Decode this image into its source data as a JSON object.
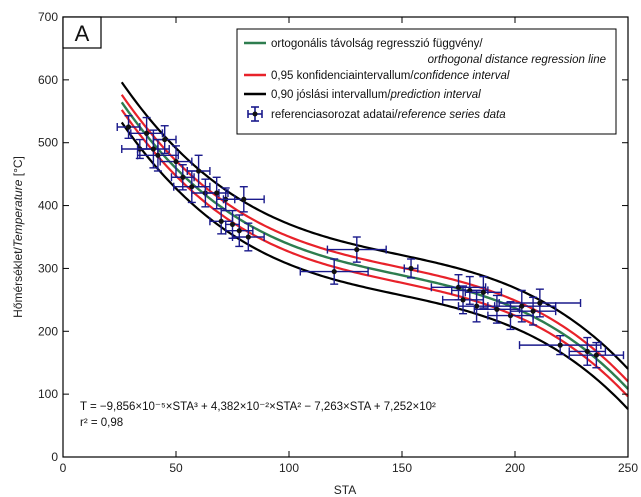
{
  "chart_data": {
    "type": "scatter",
    "panel_label": "A",
    "xlabel": "STA",
    "ylabel_prefix": "Hőmérséklet/",
    "ylabel_italic": "Temperature",
    "ylabel_suffix": " [°C]",
    "xlim": [
      0,
      250
    ],
    "ylim": [
      0,
      700
    ],
    "x_ticks": [
      0,
      50,
      100,
      150,
      200,
      250
    ],
    "y_ticks": [
      0,
      100,
      200,
      300,
      400,
      500,
      600,
      700
    ],
    "grid": false,
    "legend_position": "top-right",
    "legend": [
      {
        "line1": "ortogonális távolság regresszió függvény/",
        "line1_italic": "",
        "line2": "orthogonal distance regression line",
        "color": "#2e7d4f"
      },
      {
        "line1": "0,95 konfidenciaintervallum/",
        "line1_italic": "confidence interval",
        "color": "#e8222a"
      },
      {
        "line1": "0,90 jóslási intervallum/",
        "line1_italic": "prediction interval",
        "color": "#000000"
      },
      {
        "line1": "referenciasorozat adatai/",
        "line1_italic": "reference series data",
        "color": "#1a1a8c"
      }
    ],
    "equation": "T = −9,856×10⁻⁵×STA³ + 4,382×10⁻²×STA² − 7,263×STA + 7,252×10²",
    "r2": "r² = 0,98",
    "regression": {
      "a3": -9.856e-05,
      "a2": 0.04382,
      "a1": -7.263,
      "a0": 725.2,
      "x_range": [
        26,
        250
      ]
    },
    "confidence_halfwidth": 12,
    "prediction_halfwidth": 32,
    "series": [
      {
        "name": "referenciasorozat adatai/reference series data",
        "points": [
          {
            "x": 29,
            "y": 525,
            "xerr": 5,
            "yerr": 18
          },
          {
            "x": 34,
            "y": 490,
            "xerr": 8,
            "yerr": 15
          },
          {
            "x": 37,
            "y": 515,
            "xerr": 7,
            "yerr": 25
          },
          {
            "x": 40,
            "y": 490,
            "xerr": 7,
            "yerr": 30
          },
          {
            "x": 42,
            "y": 480,
            "xerr": 9,
            "yerr": 25
          },
          {
            "x": 45,
            "y": 505,
            "xerr": 5,
            "yerr": 22
          },
          {
            "x": 50,
            "y": 470,
            "xerr": 7,
            "yerr": 25
          },
          {
            "x": 53,
            "y": 445,
            "xerr": 5,
            "yerr": 20
          },
          {
            "x": 57,
            "y": 430,
            "xerr": 8,
            "yerr": 25
          },
          {
            "x": 60,
            "y": 455,
            "xerr": 5,
            "yerr": 25
          },
          {
            "x": 63,
            "y": 420,
            "xerr": 6,
            "yerr": 22
          },
          {
            "x": 68,
            "y": 420,
            "xerr": 5,
            "yerr": 25
          },
          {
            "x": 70,
            "y": 375,
            "xerr": 5,
            "yerr": 20
          },
          {
            "x": 72,
            "y": 410,
            "xerr": 4,
            "yerr": 18
          },
          {
            "x": 75,
            "y": 370,
            "xerr": 3,
            "yerr": 22
          },
          {
            "x": 78,
            "y": 360,
            "xerr": 6,
            "yerr": 25
          },
          {
            "x": 80,
            "y": 410,
            "xerr": 9,
            "yerr": 20
          },
          {
            "x": 82,
            "y": 350,
            "xerr": 7,
            "yerr": 22
          },
          {
            "x": 120,
            "y": 295,
            "xerr": 15,
            "yerr": 20
          },
          {
            "x": 130,
            "y": 330,
            "xerr": 13,
            "yerr": 20
          },
          {
            "x": 154,
            "y": 300,
            "xerr": 3,
            "yerr": 15
          },
          {
            "x": 175,
            "y": 270,
            "xerr": 12,
            "yerr": 20
          },
          {
            "x": 177,
            "y": 250,
            "xerr": 9,
            "yerr": 22
          },
          {
            "x": 180,
            "y": 265,
            "xerr": 8,
            "yerr": 22
          },
          {
            "x": 183,
            "y": 240,
            "xerr": 8,
            "yerr": 25
          },
          {
            "x": 186,
            "y": 262,
            "xerr": 8,
            "yerr": 25
          },
          {
            "x": 192,
            "y": 235,
            "xerr": 10,
            "yerr": 22
          },
          {
            "x": 198,
            "y": 225,
            "xerr": 10,
            "yerr": 22
          },
          {
            "x": 203,
            "y": 240,
            "xerr": 15,
            "yerr": 25
          },
          {
            "x": 208,
            "y": 232,
            "xerr": 10,
            "yerr": 22
          },
          {
            "x": 211,
            "y": 245,
            "xerr": 18,
            "yerr": 22
          },
          {
            "x": 220,
            "y": 178,
            "xerr": 18,
            "yerr": 15
          },
          {
            "x": 232,
            "y": 168,
            "xerr": 8,
            "yerr": 22
          },
          {
            "x": 236,
            "y": 162,
            "xerr": 12,
            "yerr": 20
          }
        ]
      }
    ]
  }
}
